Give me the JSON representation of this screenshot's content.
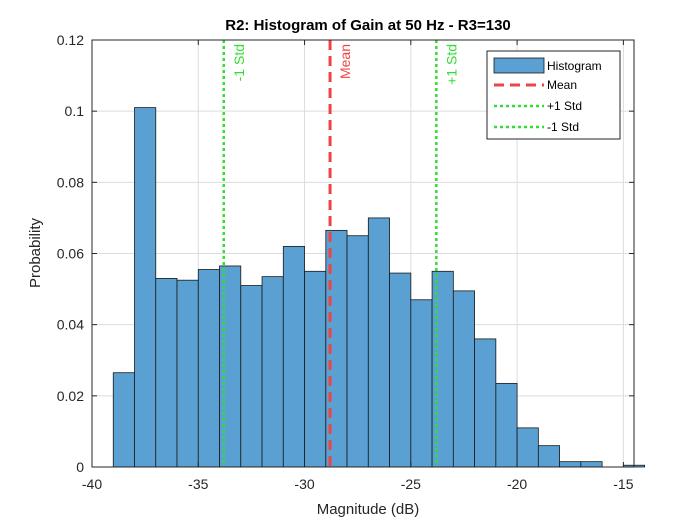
{
  "chart_data": {
    "type": "bar",
    "title": "R2: Histogram of Gain at 50 Hz  - R3=130",
    "xlabel": "Magnitude (dB)",
    "ylabel": "Probability",
    "xlim": [
      -40,
      -14.5
    ],
    "ylim": [
      0,
      0.12
    ],
    "xticks": [
      -40,
      -35,
      -30,
      -25,
      -20,
      -15
    ],
    "yticks": [
      0,
      0.02,
      0.04,
      0.06,
      0.08,
      0.1,
      0.12
    ],
    "xtick_labels": [
      "-40",
      "-35",
      "-30",
      "-25",
      "-20",
      "-15"
    ],
    "ytick_labels": [
      "0",
      "0.02",
      "0.04",
      "0.06",
      "0.08",
      "0.1",
      "0.12"
    ],
    "grid": true,
    "legend_position": "top-right",
    "bin_edges": [
      -39.0,
      -38.0,
      -37.0,
      -36.0,
      -35.0,
      -34.0,
      -33.0,
      -32.0,
      -31.0,
      -30.0,
      -29.0,
      -28.0,
      -27.0,
      -26.0,
      -25.0,
      -24.0,
      -23.0,
      -22.0,
      -21.0,
      -20.0,
      -19.0,
      -18.0,
      -17.0,
      -16.0,
      -15.0
    ],
    "values": [
      0.0265,
      0.101,
      0.053,
      0.0525,
      0.0555,
      0.0565,
      0.051,
      0.0535,
      0.062,
      0.055,
      0.0665,
      0.065,
      0.07,
      0.0545,
      0.047,
      0.055,
      0.0495,
      0.036,
      0.0235,
      0.011,
      0.006,
      0.0015,
      0.0015,
      0.0,
      0.0005
    ],
    "series": [
      {
        "name": "Histogram",
        "color": "#5aa0d2"
      }
    ],
    "vlines": [
      {
        "name": "Mean",
        "x": -28.8,
        "color": "#ef4444",
        "style": "dashed",
        "label": "Mean"
      },
      {
        "name": "+1 Std",
        "x": -23.8,
        "color": "#33dd33",
        "style": "dotted",
        "label": "+1 Std"
      },
      {
        "name": "-1 Std",
        "x": -33.8,
        "color": "#33dd33",
        "style": "dotted",
        "label": "-1 Std"
      }
    ],
    "legend": [
      "Histogram",
      "Mean",
      "+1 Std",
      "-1 Std"
    ]
  }
}
